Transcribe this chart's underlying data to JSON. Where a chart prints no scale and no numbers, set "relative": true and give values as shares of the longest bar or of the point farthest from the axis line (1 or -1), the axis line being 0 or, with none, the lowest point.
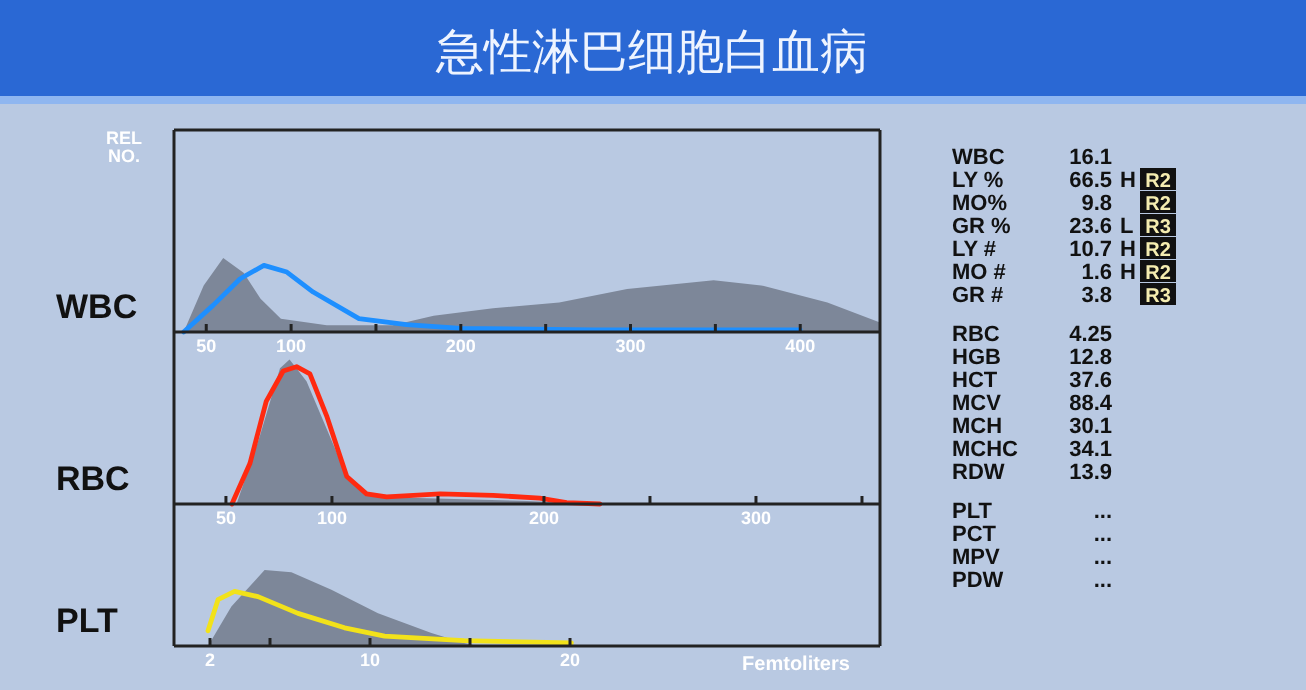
{
  "chart_data": [
    {
      "type": "area",
      "title": "急性淋巴细胞白血病",
      "ylabel": "WBC",
      "annotations": [
        "REL NO."
      ],
      "relative": true,
      "xlim": [
        31,
        447
      ],
      "xticks": [
        50,
        100,
        {
          "value": 150,
          "label": null
        },
        200,
        {
          "value": 250,
          "label": null
        },
        300,
        {
          "value": 350,
          "label": null
        },
        400
      ],
      "series": [
        {
          "type": "area",
          "color": "#7d8799",
          "x": [
            36.7,
            48.5,
            60,
            72,
            82,
            94,
            121,
            160,
            184,
            219,
            258,
            298,
            349,
            377,
            416,
            447
          ],
          "values": [
            0,
            0.63,
            1,
            0.8,
            0.45,
            0.18,
            0.09,
            0.09,
            0.22,
            0.32,
            0.4,
            0.58,
            0.7,
            0.63,
            0.4,
            0.13
          ]
        },
        {
          "type": "line",
          "color": "#1e8fff",
          "x": [
            36.7,
            54,
            70,
            84,
            97.5,
            113,
            140,
            168,
            200,
            278,
            400
          ],
          "values": [
            0,
            0.36,
            0.72,
            0.9,
            0.81,
            0.54,
            0.18,
            0.1,
            0.05,
            0.03,
            0.03
          ]
        }
      ]
    },
    {
      "type": "area",
      "ylabel": "RBC",
      "relative": true,
      "xlim": [
        25.5,
        358.5
      ],
      "xticks": [
        50,
        100,
        {
          "value": 150,
          "label": null
        },
        200,
        {
          "value": 250,
          "label": null
        },
        300,
        {
          "value": 350,
          "label": null
        }
      ],
      "series": [
        {
          "type": "area",
          "color": "#7d8799",
          "x": [
            55,
            66,
            75.5,
            80,
            88,
            97.5,
            107,
            119.5,
            144.6,
            192,
            223
          ],
          "values": [
            0,
            0.47,
            0.94,
            1,
            0.85,
            0.52,
            0.19,
            0.05,
            0.04,
            0.02,
            0
          ]
        },
        {
          "type": "line",
          "color": "#ff2a10",
          "x": [
            52.8,
            61.3,
            69,
            77,
            83.3,
            89.6,
            97.5,
            107,
            116.3,
            125.8,
            151,
            176,
            198,
            210.7,
            226.4
          ],
          "values": [
            0,
            0.28,
            0.71,
            0.92,
            0.95,
            0.9,
            0.61,
            0.19,
            0.07,
            0.05,
            0.07,
            0.06,
            0.04,
            0.01,
            0
          ]
        }
      ]
    },
    {
      "type": "area",
      "ylabel": "PLT",
      "xlabel": "Femtoliters",
      "relative": true,
      "xlim": [
        0.2,
        35.5
      ],
      "xticks": [
        2,
        {
          "value": 5,
          "label": null
        },
        10,
        {
          "value": 15,
          "label": null
        },
        20
      ],
      "series": [
        {
          "type": "area",
          "color": "#7d8799",
          "x": [
            1.9,
            3.07,
            4.73,
            6.07,
            8.07,
            10.4,
            13.07,
            14.7,
            15.4
          ],
          "values": [
            0,
            0.52,
            1,
            0.97,
            0.74,
            0.43,
            0.17,
            0.04,
            0
          ]
        },
        {
          "type": "line",
          "color": "#f2e21a",
          "x": [
            1.9,
            2.4,
            3.23,
            4.4,
            6.4,
            8.73,
            10.73,
            14.7,
            20.07
          ],
          "values": [
            0.2,
            0.61,
            0.72,
            0.65,
            0.43,
            0.24,
            0.13,
            0.07,
            0.04
          ]
        }
      ]
    },
    {
      "type": "other",
      "categories": [
        "WBC",
        "LY %",
        "MO%",
        "GR %",
        "LY #",
        "MO #",
        "GR #",
        null,
        "RBC",
        "HGB",
        "HCT",
        "MCV",
        "MCH",
        "MCHC",
        "RDW",
        null,
        "PLT",
        "PCT",
        "MPV",
        "PDW"
      ],
      "value_labels": [
        [
          "16.1",
          null,
          null
        ],
        [
          "66.5",
          "H",
          "R2"
        ],
        [
          "9.8",
          null,
          "R2"
        ],
        [
          "23.6",
          "L",
          "R3"
        ],
        [
          "10.7",
          "H",
          "R2"
        ],
        [
          "1.6",
          "H",
          "R2"
        ],
        [
          "3.8",
          null,
          "R3"
        ],
        null,
        [
          "4.25",
          null,
          null
        ],
        [
          "12.8",
          null,
          null
        ],
        [
          "37.6",
          null,
          null
        ],
        [
          "88.4",
          null,
          null
        ],
        [
          "30.1",
          null,
          null
        ],
        [
          "34.1",
          null,
          null
        ],
        [
          "13.9",
          null,
          null
        ],
        null,
        [
          "...",
          null,
          null
        ],
        [
          "...",
          null,
          null
        ],
        [
          "...",
          null,
          null
        ],
        [
          "...",
          null,
          null
        ]
      ]
    }
  ]
}
